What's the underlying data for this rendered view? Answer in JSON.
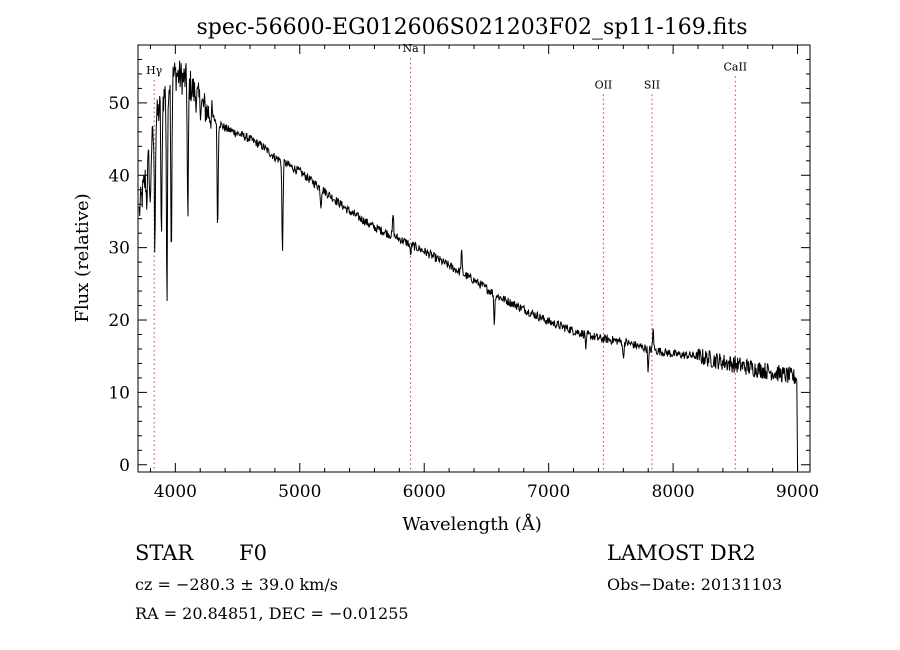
{
  "chart_data": {
    "type": "line",
    "title": "spec-56600-EG012606S021203F02_sp11-169.fits",
    "xlabel": "Wavelength (Å)",
    "ylabel": "Flux (relative)",
    "xlim": [
      3700,
      9100
    ],
    "ylim": [
      -1,
      58
    ],
    "xticks": [
      4000,
      5000,
      6000,
      7000,
      8000,
      9000
    ],
    "yticks": [
      0,
      10,
      20,
      30,
      40,
      50
    ],
    "continuum": {
      "x": [
        3700,
        3850,
        3950,
        4000,
        4100,
        4200,
        4300,
        4400,
        4500,
        4600,
        4700,
        4800,
        4900,
        5000,
        5200,
        5400,
        5600,
        5800,
        6000,
        6200,
        6400,
        6600,
        6800,
        7000,
        7200,
        7400,
        7600,
        7800,
        8000,
        8200,
        8400,
        8600,
        8800,
        9000
      ],
      "y": [
        34,
        48,
        53,
        54,
        53,
        50,
        48,
        46.5,
        45.8,
        45,
        44,
        42.5,
        41.5,
        40.5,
        37.8,
        35,
        32.8,
        31.2,
        29.5,
        27.5,
        25.5,
        23.2,
        21.5,
        19.8,
        18.5,
        17.5,
        17,
        16,
        15.3,
        15,
        14.2,
        13.5,
        12.8,
        12
      ]
    },
    "absorption_lines": [
      {
        "x": 3770,
        "depth": 4
      },
      {
        "x": 3798,
        "depth": 8
      },
      {
        "x": 3835,
        "depth": 16
      },
      {
        "x": 3889,
        "depth": 20
      },
      {
        "x": 3933,
        "depth": 30
      },
      {
        "x": 3968,
        "depth": 24
      },
      {
        "x": 4101,
        "depth": 20
      },
      {
        "x": 4340,
        "depth": 15
      },
      {
        "x": 4861,
        "depth": 13
      },
      {
        "x": 5170,
        "depth": 2.5
      },
      {
        "x": 5890,
        "depth": 1.5
      },
      {
        "x": 6563,
        "depth": 4
      },
      {
        "x": 7300,
        "depth": 2
      },
      {
        "x": 7600,
        "depth": 2.5
      },
      {
        "x": 7800,
        "depth": 3
      }
    ],
    "emission_lines": [
      {
        "x": 5750,
        "height": 3
      },
      {
        "x": 6300,
        "height": 3
      },
      {
        "x": 7840,
        "height": 3
      }
    ],
    "noise": 0.6,
    "final_drop": {
      "x": 9000,
      "y": -1
    },
    "line_markers": [
      {
        "label": "Hγ",
        "x": 3830,
        "label_y": 54
      },
      {
        "label": "Na",
        "x": 5890,
        "label_y": 57
      },
      {
        "label": "OII",
        "x": 7440,
        "label_y": 52
      },
      {
        "label": "SII",
        "x": 7830,
        "label_y": 52
      },
      {
        "label": "CaII",
        "x": 8500,
        "label_y": 54.5
      }
    ]
  },
  "info": {
    "object_class": "STAR",
    "subclass": "F0",
    "survey": "LAMOST DR2",
    "cz": "cz = −280.3 ± 39.0 km/s",
    "obs_date": "Obs−Date: 20131103",
    "coords": "RA =  20.84851, DEC =  −0.01255"
  },
  "colors": {
    "spectrum": "#000000",
    "marker": "#e53030",
    "axis": "#000000"
  }
}
